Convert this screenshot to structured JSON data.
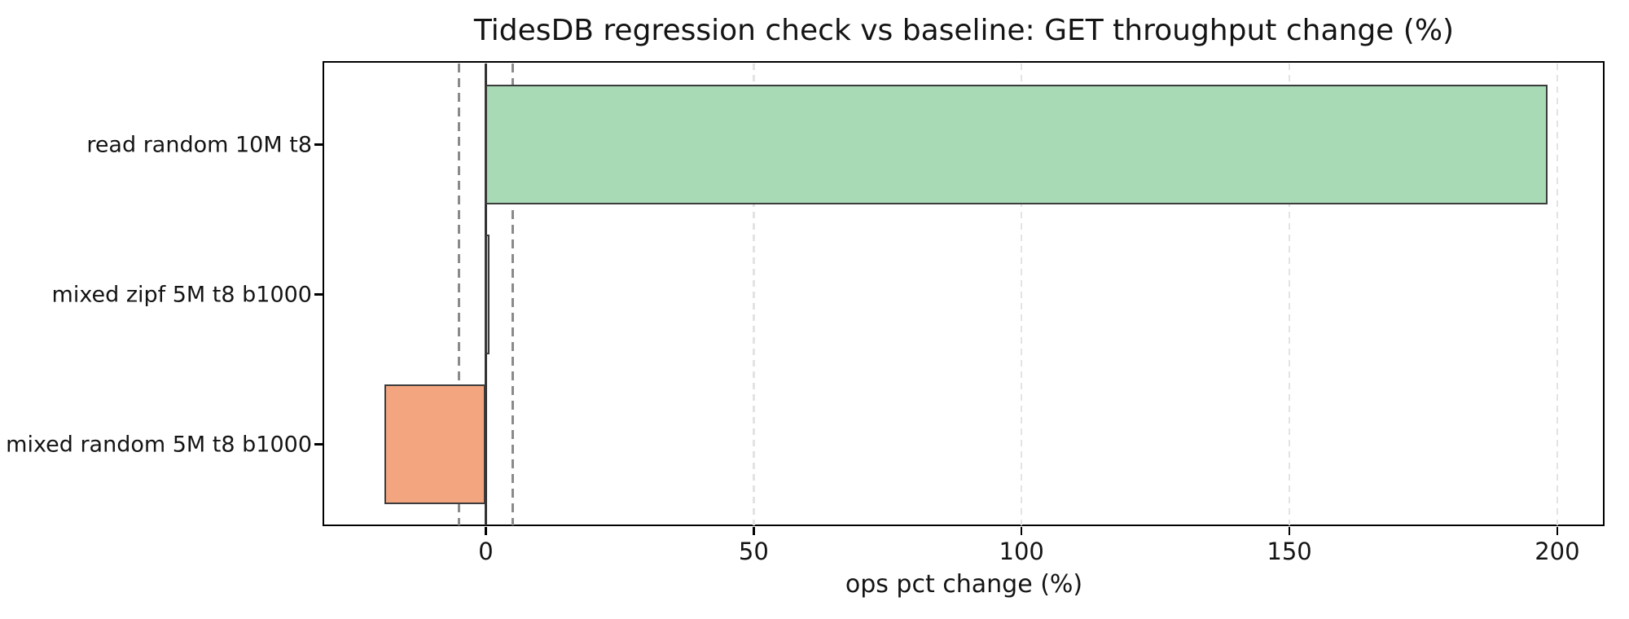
{
  "figure": {
    "title": "TidesDB regression check vs baseline: GET throughput change (%)",
    "xlabel": "ops pct change (%)"
  },
  "chart_data": {
    "type": "bar",
    "orientation": "horizontal",
    "title": "TidesDB regression check vs baseline: GET throughput change (%)",
    "xlabel": "ops pct change (%)",
    "ylabel": "",
    "categories": [
      "read random 10M t8",
      "mixed zipf 5M t8 b1000",
      "mixed random 5M t8 b1000"
    ],
    "values": [
      198.2,
      0.7,
      -19.0
    ],
    "bar_colors": [
      "#a7dab5",
      "#cfcfcf",
      "#f3a580"
    ],
    "bar_edge_color": "#3c3c3c",
    "xlim": [
      -30.1,
      208.6
    ],
    "x_ticks": [
      0,
      50,
      100,
      150,
      200
    ],
    "threshold_lines": [
      -5,
      5
    ],
    "zero_line": 0,
    "grid": true,
    "legend": "none",
    "colors": {
      "gridline": "#e3e3e3",
      "threshold": "#8a8a8a",
      "zero_line": "#333333",
      "spine": "#000000",
      "text": "#141414"
    }
  }
}
